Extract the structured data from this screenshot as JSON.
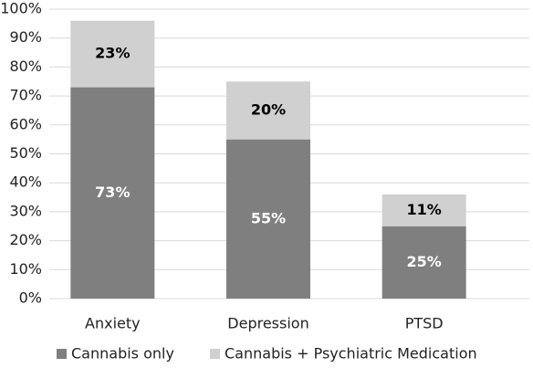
{
  "chart_data": {
    "type": "stacked_bar",
    "categories": [
      "Anxiety",
      "Depression",
      "PTSD"
    ],
    "series": [
      {
        "name": "Cannabis only",
        "color": "#7f7f7f",
        "values": [
          73,
          55,
          25
        ],
        "value_labels": [
          "73%",
          "55%",
          "25%"
        ],
        "label_color": "#ffffff"
      },
      {
        "name": "Cannabis + Psychiatric Medication",
        "color": "#d0d0d0",
        "values": [
          23,
          20,
          11
        ],
        "value_labels": [
          "23%",
          "20%",
          "11%"
        ],
        "label_color": "#000000"
      }
    ],
    "ylim": [
      0,
      100
    ],
    "yticks": [
      {
        "value": 0,
        "label": "0%"
      },
      {
        "value": 10,
        "label": "10%"
      },
      {
        "value": 20,
        "label": "20%"
      },
      {
        "value": 30,
        "label": "30%"
      },
      {
        "value": 40,
        "label": "40%"
      },
      {
        "value": 50,
        "label": "50%"
      },
      {
        "value": 60,
        "label": "60%"
      },
      {
        "value": 70,
        "label": "70%"
      },
      {
        "value": 80,
        "label": "80%"
      },
      {
        "value": 90,
        "label": "90%"
      },
      {
        "value": 100,
        "label": "100%"
      }
    ],
    "grid": true,
    "legend": "bottom"
  }
}
